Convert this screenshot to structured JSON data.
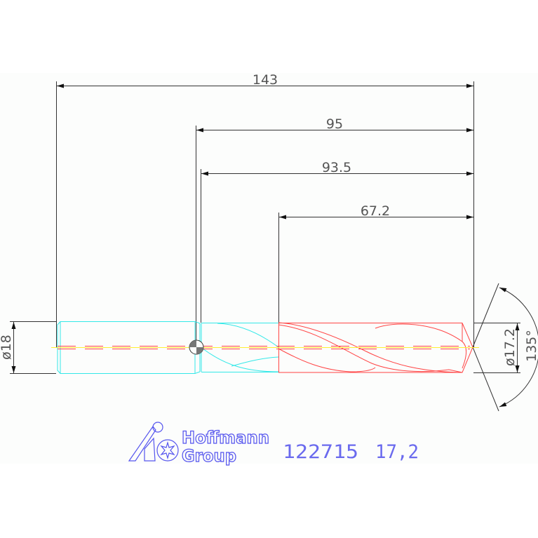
{
  "dimensions": {
    "overall_length": "143",
    "length_95": "95",
    "length_93_5": "93.5",
    "flute_length": "67.2",
    "shank_diameter": "ø18",
    "drill_diameter": "ø17.2",
    "point_angle": "135°"
  },
  "logo": {
    "line1": "Hoffmann",
    "line2": "Group"
  },
  "part": {
    "article_number": "122715",
    "size": "17,2"
  },
  "colors": {
    "shank": "#33e8e8",
    "flute_body": "#ff4444",
    "dimension": "#333333",
    "logo": "#5555ee",
    "centerline": "#ffee33"
  }
}
